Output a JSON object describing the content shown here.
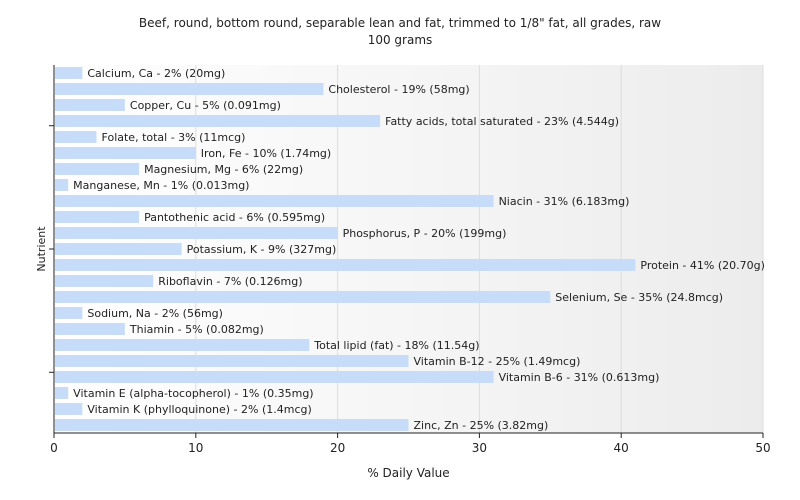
{
  "chart_data": {
    "type": "bar",
    "orientation": "horizontal",
    "title": "Beef, round, bottom round, separable lean and fat, trimmed to 1/8\" fat, all grades, raw",
    "subtitle": "100 grams",
    "xlabel": "% Daily Value",
    "ylabel": "Nutrient",
    "xlim": [
      0,
      50
    ],
    "xticks": [
      0,
      10,
      20,
      30,
      40,
      50
    ],
    "grid": true,
    "bar_color": "#c6dcf8",
    "categories": [
      "Calcium, Ca",
      "Cholesterol",
      "Copper, Cu",
      "Fatty acids, total saturated",
      "Folate, total",
      "Iron, Fe",
      "Magnesium, Mg",
      "Manganese, Mn",
      "Niacin",
      "Pantothenic acid",
      "Phosphorus, P",
      "Potassium, K",
      "Protein",
      "Riboflavin",
      "Selenium, Se",
      "Sodium, Na",
      "Thiamin",
      "Total lipid (fat)",
      "Vitamin B-12",
      "Vitamin B-6",
      "Vitamin E (alpha-tocopherol)",
      "Vitamin K (phylloquinone)",
      "Zinc, Zn"
    ],
    "values": [
      2,
      19,
      5,
      23,
      3,
      10,
      6,
      1,
      31,
      6,
      20,
      9,
      41,
      7,
      35,
      2,
      5,
      18,
      25,
      31,
      1,
      2,
      25
    ],
    "labels": [
      "Calcium, Ca - 2% (20mg)",
      "Cholesterol - 19% (58mg)",
      "Copper, Cu - 5% (0.091mg)",
      "Fatty acids, total saturated - 23% (4.544g)",
      "Folate, total - 3% (11mcg)",
      "Iron, Fe - 10% (1.74mg)",
      "Magnesium, Mg - 6% (22mg)",
      "Manganese, Mn - 1% (0.013mg)",
      "Niacin - 31% (6.183mg)",
      "Pantothenic acid - 6% (0.595mg)",
      "Phosphorus, P - 20% (199mg)",
      "Potassium, K - 9% (327mg)",
      "Protein - 41% (20.70g)",
      "Riboflavin - 7% (0.126mg)",
      "Selenium, Se - 35% (24.8mcg)",
      "Sodium, Na - 2% (56mg)",
      "Thiamin - 5% (0.082mg)",
      "Total lipid (fat) - 18% (11.54g)",
      "Vitamin B-12 - 25% (1.49mcg)",
      "Vitamin B-6 - 31% (0.613mg)",
      "Vitamin E (alpha-tocopherol) - 1% (0.35mg)",
      "Vitamin K (phylloquinone) - 2% (1.4mcg)",
      "Zinc, Zn - 25% (3.82mg)"
    ]
  }
}
